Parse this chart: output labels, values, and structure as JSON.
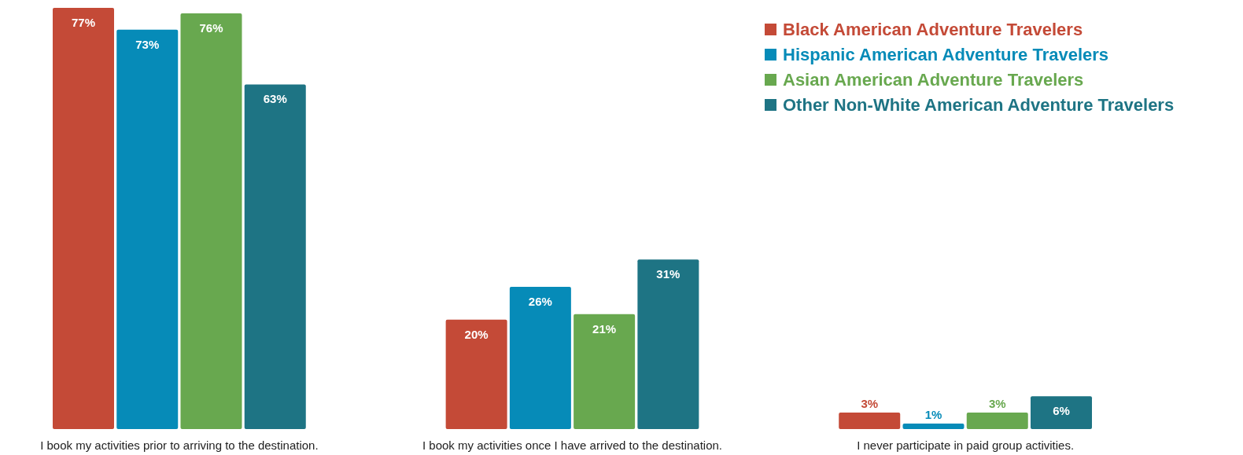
{
  "chart_data": {
    "type": "bar",
    "categories": [
      "I book my activities prior to arriving to the destination.",
      "I book my activities once I have arrived to the destination.",
      "I never participate in paid group activities."
    ],
    "series": [
      {
        "name": "Black American Adventure Travelers",
        "color": "#c44a37",
        "values": [
          77,
          20,
          3
        ],
        "value_labels": [
          "77%",
          "20%",
          "3%"
        ]
      },
      {
        "name": "Hispanic American Adventure Travelers",
        "color": "#068bb8",
        "values": [
          73,
          26,
          1
        ],
        "value_labels": [
          "73%",
          "26%",
          "1%"
        ]
      },
      {
        "name": "Asian American Adventure Travelers",
        "color": "#68a84f",
        "values": [
          76,
          21,
          3
        ],
        "value_labels": [
          "76%",
          "21%",
          "3%"
        ]
      },
      {
        "name": "Other Non-White American Adventure Travelers",
        "color": "#1e7484",
        "values": [
          63,
          31,
          6
        ],
        "value_labels": [
          "63%",
          "31%",
          "6%"
        ]
      }
    ],
    "legend": "top right"
  }
}
